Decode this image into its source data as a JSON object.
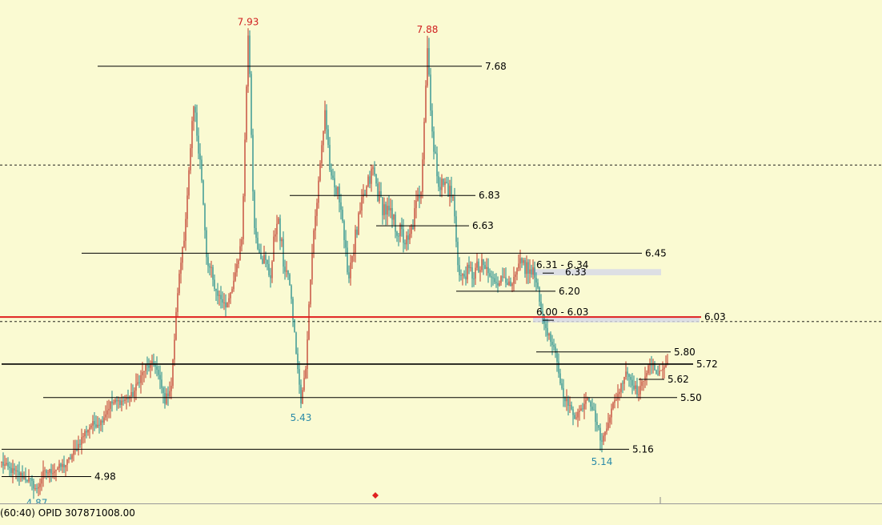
{
  "colors": {
    "background": "#fafad2",
    "up_candle": "#c0392b",
    "down_candle": "#1f8a8a",
    "level_line": "#000000",
    "resistance_line": "#e02020",
    "peak_label": "#d02020",
    "trough_label": "#2a8aa8",
    "zone": "#d6d8e8",
    "marker": "#e02020"
  },
  "status": {
    "text": "(60:40)  OPID 307871008.00"
  },
  "chart_data": {
    "type": "candlestick",
    "title": "",
    "xlabel": "",
    "ylabel": "",
    "ylim": [
      4.83,
      8.0
    ],
    "grid": false,
    "legend": "none",
    "levels": [
      {
        "value": 7.68,
        "label": "7.68",
        "x_from_bar": 60,
        "x_to_bar": 300
      },
      {
        "value": 6.83,
        "label": "6.83",
        "x_from_bar": 180,
        "x_to_bar": 296
      },
      {
        "value": 6.63,
        "label": "6.63",
        "x_from_bar": 234,
        "x_to_bar": 292
      },
      {
        "value": 6.45,
        "label": "6.45",
        "x_from_bar": 50,
        "x_to_bar": 400
      },
      {
        "value": 6.2,
        "label": "6.20",
        "x_from_bar": 284,
        "x_to_bar": 346
      },
      {
        "value": 5.8,
        "label": "5.80",
        "x_from_bar": 334,
        "x_to_bar": 418
      },
      {
        "value": 5.72,
        "label": "5.72",
        "x_from_bar": 0,
        "x_to_bar": 432,
        "bold": true
      },
      {
        "value": 5.62,
        "label": "5.62",
        "x_from_bar": 398,
        "x_to_bar": 414
      },
      {
        "value": 5.5,
        "label": "5.50",
        "x_from_bar": 26,
        "x_to_bar": 422
      },
      {
        "value": 5.16,
        "label": "5.16",
        "x_from_bar": 0,
        "x_to_bar": 392
      },
      {
        "value": 4.98,
        "label": "4.98",
        "x_from_bar": 0,
        "x_to_bar": 56
      }
    ],
    "dashed_levels": [
      7.03,
      6.0
    ],
    "resistance": {
      "value": 6.03,
      "label": "6.03"
    },
    "zones": [
      {
        "low": 6.31,
        "high": 6.34,
        "label": "6.31 - 6.34",
        "x_from_bar": 332,
        "x_to_bar": 412
      },
      {
        "low": 6.0,
        "high": 6.03,
        "label": "6.00 - 6.03",
        "x_from_bar": 332,
        "x_to_bar": 436
      }
    ],
    "extra_label": {
      "value": 6.33,
      "text": "6.33"
    },
    "peaks": [
      {
        "label": "7.93",
        "value": 7.93,
        "bar": 154,
        "kind": "high"
      },
      {
        "label": "7.88",
        "value": 7.88,
        "bar": 266,
        "kind": "high"
      },
      {
        "label": "5.43",
        "value": 5.43,
        "bar": 187,
        "kind": "low"
      },
      {
        "label": "5.14",
        "value": 5.14,
        "bar": 375,
        "kind": "low"
      },
      {
        "label": "4.87",
        "value": 4.87,
        "bar": 22,
        "kind": "low"
      }
    ],
    "anchors": [
      [
        0,
        5.07
      ],
      [
        6,
        5.02
      ],
      [
        12,
        4.99
      ],
      [
        18,
        4.95
      ],
      [
        22,
        4.89
      ],
      [
        26,
        5.0
      ],
      [
        32,
        5.02
      ],
      [
        40,
        5.06
      ],
      [
        46,
        5.15
      ],
      [
        52,
        5.27
      ],
      [
        56,
        5.32
      ],
      [
        62,
        5.34
      ],
      [
        68,
        5.46
      ],
      [
        76,
        5.48
      ],
      [
        82,
        5.52
      ],
      [
        86,
        5.62
      ],
      [
        90,
        5.7
      ],
      [
        96,
        5.72
      ],
      [
        102,
        5.48
      ],
      [
        106,
        5.58
      ],
      [
        110,
        6.2
      ],
      [
        116,
        6.8
      ],
      [
        120,
        7.4
      ],
      [
        124,
        7.1
      ],
      [
        128,
        6.4
      ],
      [
        134,
        6.2
      ],
      [
        140,
        6.1
      ],
      [
        146,
        6.3
      ],
      [
        150,
        6.5
      ],
      [
        154,
        7.9
      ],
      [
        158,
        6.6
      ],
      [
        164,
        6.4
      ],
      [
        168,
        6.3
      ],
      [
        172,
        6.7
      ],
      [
        176,
        6.4
      ],
      [
        180,
        6.25
      ],
      [
        184,
        5.8
      ],
      [
        187,
        5.46
      ],
      [
        190,
        5.7
      ],
      [
        194,
        6.5
      ],
      [
        198,
        6.9
      ],
      [
        202,
        7.4
      ],
      [
        206,
        6.9
      ],
      [
        212,
        6.8
      ],
      [
        216,
        6.3
      ],
      [
        220,
        6.5
      ],
      [
        226,
        6.8
      ],
      [
        232,
        7.0
      ],
      [
        236,
        6.8
      ],
      [
        242,
        6.7
      ],
      [
        248,
        6.6
      ],
      [
        254,
        6.5
      ],
      [
        258,
        6.7
      ],
      [
        262,
        6.9
      ],
      [
        266,
        7.8
      ],
      [
        270,
        7.1
      ],
      [
        274,
        6.9
      ],
      [
        278,
        6.9
      ],
      [
        282,
        6.8
      ],
      [
        286,
        6.3
      ],
      [
        290,
        6.3
      ],
      [
        294,
        6.32
      ],
      [
        298,
        6.34
      ],
      [
        302,
        6.35
      ],
      [
        306,
        6.28
      ],
      [
        310,
        6.26
      ],
      [
        314,
        6.3
      ],
      [
        318,
        6.22
      ],
      [
        322,
        6.32
      ],
      [
        326,
        6.38
      ],
      [
        330,
        6.32
      ],
      [
        334,
        6.28
      ],
      [
        338,
        6.02
      ],
      [
        342,
        5.9
      ],
      [
        346,
        5.78
      ],
      [
        350,
        5.55
      ],
      [
        354,
        5.45
      ],
      [
        358,
        5.38
      ],
      [
        362,
        5.42
      ],
      [
        366,
        5.52
      ],
      [
        370,
        5.4
      ],
      [
        375,
        5.2
      ],
      [
        378,
        5.32
      ],
      [
        382,
        5.45
      ],
      [
        386,
        5.55
      ],
      [
        390,
        5.68
      ],
      [
        394,
        5.6
      ],
      [
        398,
        5.52
      ],
      [
        402,
        5.66
      ],
      [
        406,
        5.72
      ],
      [
        410,
        5.66
      ],
      [
        414,
        5.7
      ],
      [
        416,
        5.73
      ]
    ]
  }
}
